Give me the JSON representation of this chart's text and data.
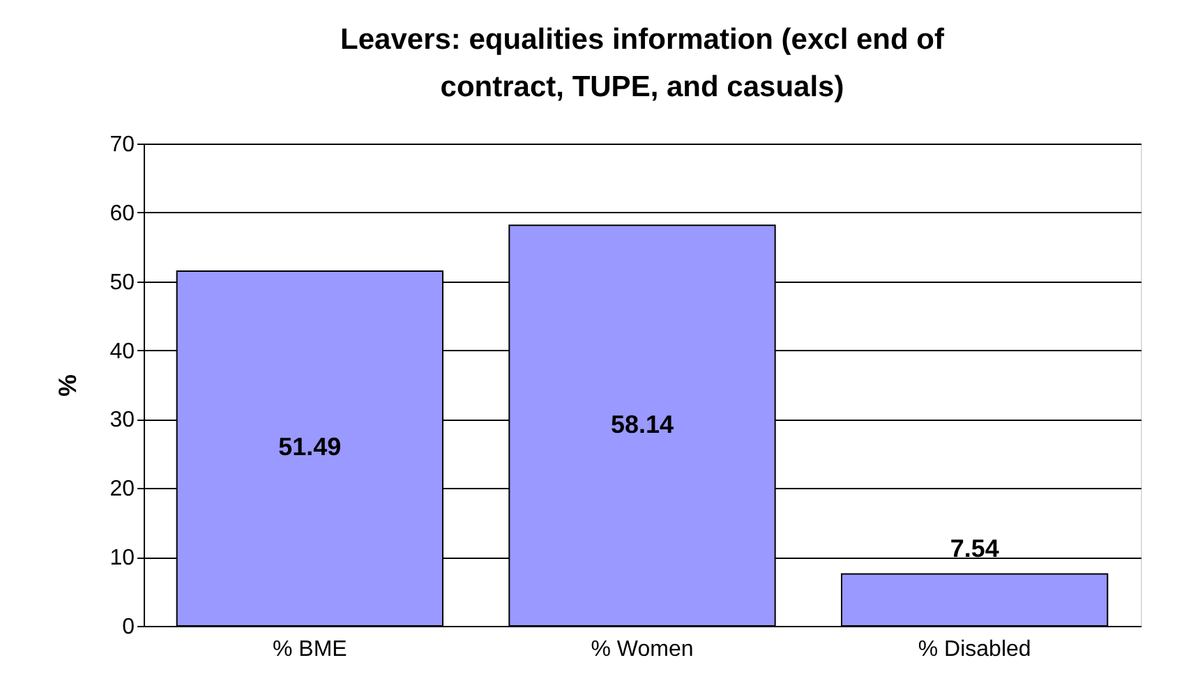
{
  "chart_data": {
    "type": "bar",
    "title": "Leavers: equalities information (excl end of contract, TUPE, and casuals)",
    "ylabel": "%",
    "categories": [
      "% BME",
      "% Women",
      "% Disabled"
    ],
    "values": [
      51.49,
      58.14,
      7.54
    ],
    "color": "#9999ff",
    "ylim": [
      0,
      70
    ],
    "yticks": [
      0,
      10,
      20,
      30,
      40,
      50,
      60,
      70
    ],
    "grid": "y",
    "data_labels": true
  }
}
